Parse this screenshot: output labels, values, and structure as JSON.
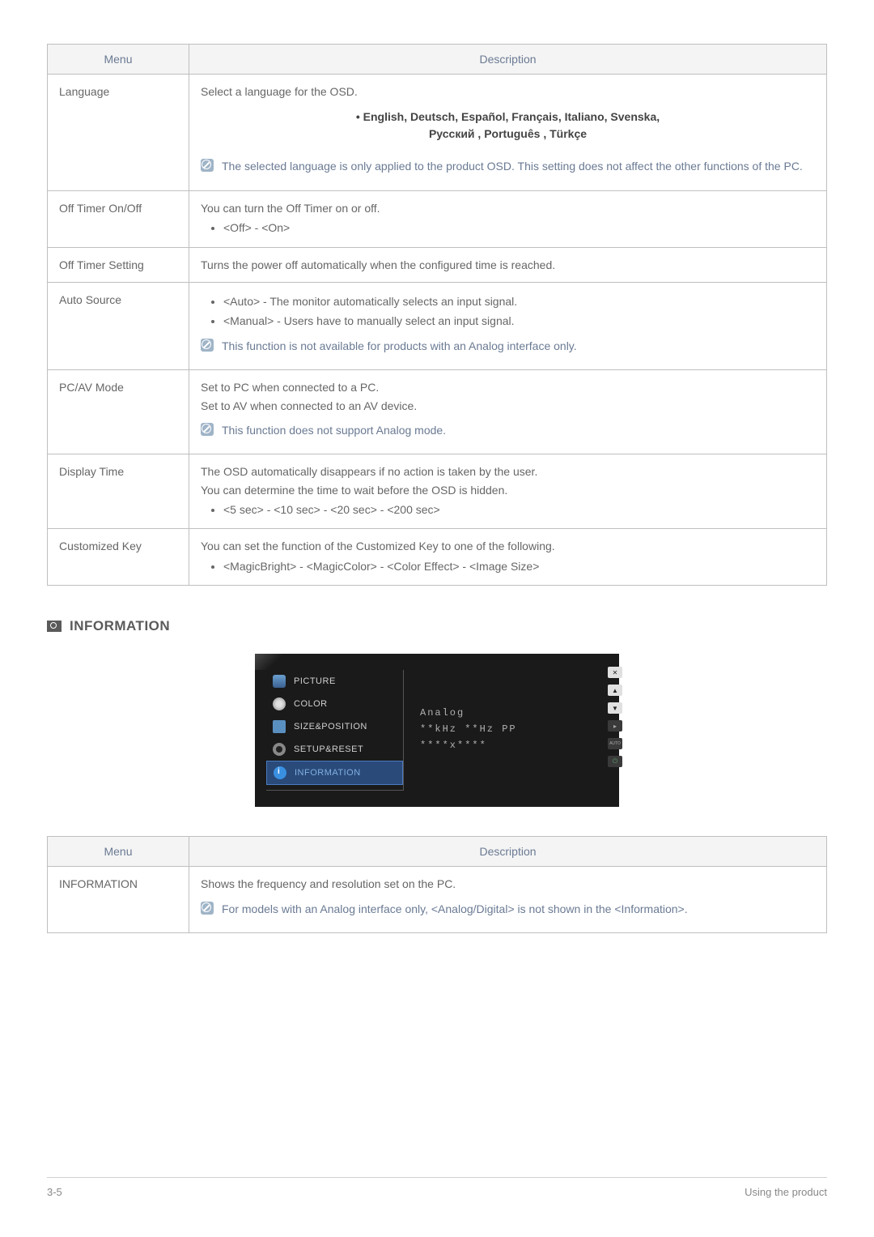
{
  "colors": {
    "border": "#bfbfbf",
    "header_bg": "#f4f4f4",
    "header_text": "#6a7a93",
    "body_text": "#666666",
    "note_text": "#6a7a93",
    "osd_bg": "#1a1a1a",
    "osd_sel_bg": "#2a4a7a"
  },
  "table1": {
    "headers": {
      "menu": "Menu",
      "desc": "Description"
    },
    "rows": {
      "language": {
        "menu": "Language",
        "d1": "Select a language for the OSD.",
        "langs1": "• English, Deutsch, Español, Français,  Italiano, Svenska,",
        "langs2": "Русский , Português , Türkçe",
        "note": "The selected language is only applied to the product OSD. This setting does not affect the other functions of the PC."
      },
      "offtimer_onoff": {
        "menu": "Off Timer On/Off",
        "d1": "You can turn the Off Timer on or off.",
        "b1": "<Off> - <On>"
      },
      "offtimer_setting": {
        "menu": "Off Timer Setting",
        "d1": "Turns the power off automatically when the configured time is reached."
      },
      "auto_source": {
        "menu": "Auto Source",
        "b1": "<Auto> - The monitor automatically selects an input signal.",
        "b2": "<Manual> - Users have to manually select an input signal.",
        "note": "This function is not available for products with an Analog interface only."
      },
      "pcav": {
        "menu": "PC/AV Mode",
        "d1": "Set to PC when connected to a PC.",
        "d2": "Set to AV when connected to an AV device.",
        "note": "This function does not support Analog mode."
      },
      "display_time": {
        "menu": "Display Time",
        "d1": "The OSD automatically disappears if no action is taken by the user.",
        "d2": "You can determine the time to wait before the OSD is hidden.",
        "b1": "<5 sec> - <10 sec> - <20 sec> - <200 sec>"
      },
      "custom_key": {
        "menu": "Customized Key",
        "d1": "You can set the function of the Customized Key to one of the following.",
        "b1": "<MagicBright> - <MagicColor> - <Color Effect> - <Image Size>"
      }
    }
  },
  "section": {
    "title": "INFORMATION"
  },
  "osd": {
    "items": {
      "picture": "PICTURE",
      "color": "COLOR",
      "sizepos": "SIZE&POSITION",
      "setup": "SETUP&RESET",
      "info": "INFORMATION"
    },
    "right": {
      "l1": "Analog",
      "l2": "**kHz **Hz PP",
      "l3": "****x****"
    },
    "buttons": {
      "auto": "AUTO"
    }
  },
  "table2": {
    "headers": {
      "menu": "Menu",
      "desc": "Description"
    },
    "rows": {
      "info": {
        "menu": "INFORMATION",
        "d1": "Shows the frequency and resolution set on the PC.",
        "note": "For models with an Analog interface only, <Analog/Digital> is not shown in the <Information>."
      }
    }
  },
  "footer": {
    "left": "3-5",
    "right": "Using the product"
  }
}
